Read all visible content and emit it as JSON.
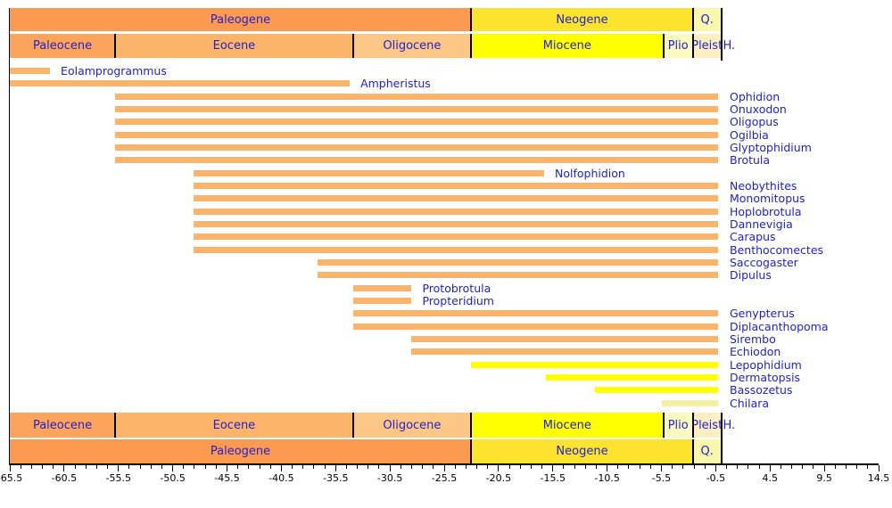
{
  "chart_data": {
    "type": "bar",
    "subtype": "stratigraphic-range-chart",
    "orientation": "horizontal",
    "title": "",
    "xlabel": "",
    "ylabel": "",
    "axis": {
      "min": -65.5,
      "max": 14.5,
      "major_step": 5,
      "minor_step": 1,
      "tick_labels": [
        "-65.5",
        "-60.5",
        "-55.5",
        "-50.5",
        "-45.5",
        "-40.5",
        "-35.5",
        "-30.5",
        "-25.5",
        "-20.5",
        "-15.5",
        "-10.5",
        "-5.5",
        "-0.5",
        "4.5",
        "9.5",
        "14.5"
      ]
    },
    "legend_position": "none",
    "grid": false,
    "periods": [
      {
        "name": "Paleogene",
        "start": -65.5,
        "end": -23.03,
        "color": "#FD9A52"
      },
      {
        "name": "Neogene",
        "start": -23.03,
        "end": -2.588,
        "color": "#FBE32E"
      },
      {
        "name": "Q.",
        "start": -2.588,
        "end": 0,
        "color": "#F9F7AC"
      }
    ],
    "epochs": [
      {
        "name": "Paleocene",
        "start": -65.5,
        "end": -55.8,
        "color": "#FCA35C"
      },
      {
        "name": "Eocene",
        "start": -55.8,
        "end": -33.9,
        "color": "#FBB469"
      },
      {
        "name": "Oligocene",
        "start": -33.9,
        "end": -23.03,
        "color": "#FCC687"
      },
      {
        "name": "Miocene",
        "start": -23.03,
        "end": -5.332,
        "color": "#FFFF00"
      },
      {
        "name": "Plio",
        "start": -5.332,
        "end": -2.588,
        "color": "#FAFAC0"
      },
      {
        "name": "Pleist",
        "start": -2.588,
        "end": 0,
        "color": "#FBEEC3"
      },
      {
        "name": "H.",
        "start": 0,
        "end": 0,
        "color": "none"
      }
    ],
    "taxa": [
      {
        "name": "Eolamprogrammus",
        "start": -65.5,
        "end": -61.8,
        "color": "#FBB469"
      },
      {
        "name": "Ampheristus",
        "start": -65.5,
        "end": -34.2,
        "color": "#FBB469"
      },
      {
        "name": "Ophidion",
        "start": -55.8,
        "end": -0.3,
        "color": "#FBB469"
      },
      {
        "name": "Onuxodon",
        "start": -55.8,
        "end": -0.3,
        "color": "#FBB469"
      },
      {
        "name": "Oligopus",
        "start": -55.8,
        "end": -0.3,
        "color": "#FBB469"
      },
      {
        "name": "Ogilbia",
        "start": -55.8,
        "end": -0.3,
        "color": "#FBB469"
      },
      {
        "name": "Glyptophidium",
        "start": -55.8,
        "end": -0.3,
        "color": "#FBB469"
      },
      {
        "name": "Brotula",
        "start": -55.8,
        "end": -0.3,
        "color": "#FBB469"
      },
      {
        "name": "Nolfophidion",
        "start": -48.6,
        "end": -16.3,
        "color": "#FBB469"
      },
      {
        "name": "Neobythites",
        "start": -48.6,
        "end": -0.3,
        "color": "#FBB469"
      },
      {
        "name": "Monomitopus",
        "start": -48.6,
        "end": -0.3,
        "color": "#FBB469"
      },
      {
        "name": "Hoplobrotula",
        "start": -48.6,
        "end": -0.3,
        "color": "#FBB469"
      },
      {
        "name": "Dannevigia",
        "start": -48.6,
        "end": -0.3,
        "color": "#FBB469"
      },
      {
        "name": "Carapus",
        "start": -48.6,
        "end": -0.3,
        "color": "#FBB469"
      },
      {
        "name": "Benthocomectes",
        "start": -48.6,
        "end": -0.3,
        "color": "#FBB469"
      },
      {
        "name": "Saccogaster",
        "start": -37.2,
        "end": -0.3,
        "color": "#FBB469"
      },
      {
        "name": "Dipulus",
        "start": -37.2,
        "end": -0.3,
        "color": "#FBB469"
      },
      {
        "name": "Protobrotula",
        "start": -33.9,
        "end": -28.5,
        "color": "#FBB469"
      },
      {
        "name": "Propteridium",
        "start": -33.9,
        "end": -28.5,
        "color": "#FBB469"
      },
      {
        "name": "Genypterus",
        "start": -33.9,
        "end": -0.3,
        "color": "#FBB469"
      },
      {
        "name": "Diplacanthopoma",
        "start": -33.9,
        "end": -0.3,
        "color": "#FBB469"
      },
      {
        "name": "Sirembo",
        "start": -28.5,
        "end": -0.3,
        "color": "#FBB469"
      },
      {
        "name": "Echiodon",
        "start": -28.5,
        "end": -0.3,
        "color": "#FBB469"
      },
      {
        "name": "Lepophidium",
        "start": -23.0,
        "end": -0.3,
        "color": "#FFFF00"
      },
      {
        "name": "Dermatopsis",
        "start": -16.1,
        "end": -0.3,
        "color": "#FFFF00"
      },
      {
        "name": "Bassozetus",
        "start": -11.6,
        "end": -0.3,
        "color": "#FFFF00"
      },
      {
        "name": "Chilara",
        "start": -5.5,
        "end": -0.3,
        "color": "#F0F0A0"
      }
    ],
    "styles": {
      "label_color": "#2222CC",
      "tick_color": "#000000",
      "frame_color": "#000000",
      "background": "#FFFFFF"
    }
  }
}
